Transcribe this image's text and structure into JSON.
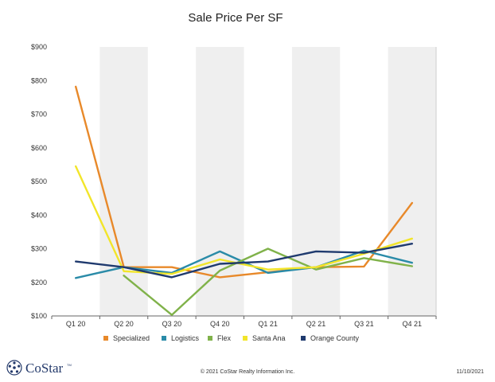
{
  "chart_data": {
    "type": "line",
    "title": "Sale Price Per SF",
    "categories": [
      "Q1 20",
      "Q2 20",
      "Q3 20",
      "Q4 20",
      "Q1 21",
      "Q2 21",
      "Q3 21",
      "Q4 21"
    ],
    "y_ticks": [
      "$100",
      "$200",
      "$300",
      "$400",
      "$500",
      "$600",
      "$700",
      "$800",
      "$900"
    ],
    "ylim": [
      100,
      900
    ],
    "grid": "alternating vertical bands",
    "legend_position": "bottom",
    "series": [
      {
        "name": "Specialized",
        "color": "#e8892a",
        "values": [
          782,
          245,
          245,
          215,
          230,
          245,
          247,
          436
        ]
      },
      {
        "name": "Logistics",
        "color": "#2a8ba8",
        "values": [
          213,
          245,
          228,
          292,
          228,
          245,
          294,
          258
        ]
      },
      {
        "name": "Flex",
        "color": "#80b24a",
        "values": [
          null,
          220,
          103,
          235,
          300,
          238,
          272,
          248
        ]
      },
      {
        "name": "Santa Ana",
        "color": "#f2e52a",
        "values": [
          545,
          233,
          225,
          268,
          238,
          245,
          285,
          330
        ]
      },
      {
        "name": "Orange County",
        "color": "#1f3a6e",
        "values": [
          262,
          245,
          215,
          255,
          262,
          292,
          288,
          315
        ]
      }
    ]
  },
  "footer": {
    "logo_text": "CoStar",
    "logo_tm": "TM",
    "copyright": "© 2021 CoStar Realty Information Inc.",
    "date": "11/10/2021"
  },
  "colors": {
    "band": "#efefef",
    "axis": "#666666"
  }
}
